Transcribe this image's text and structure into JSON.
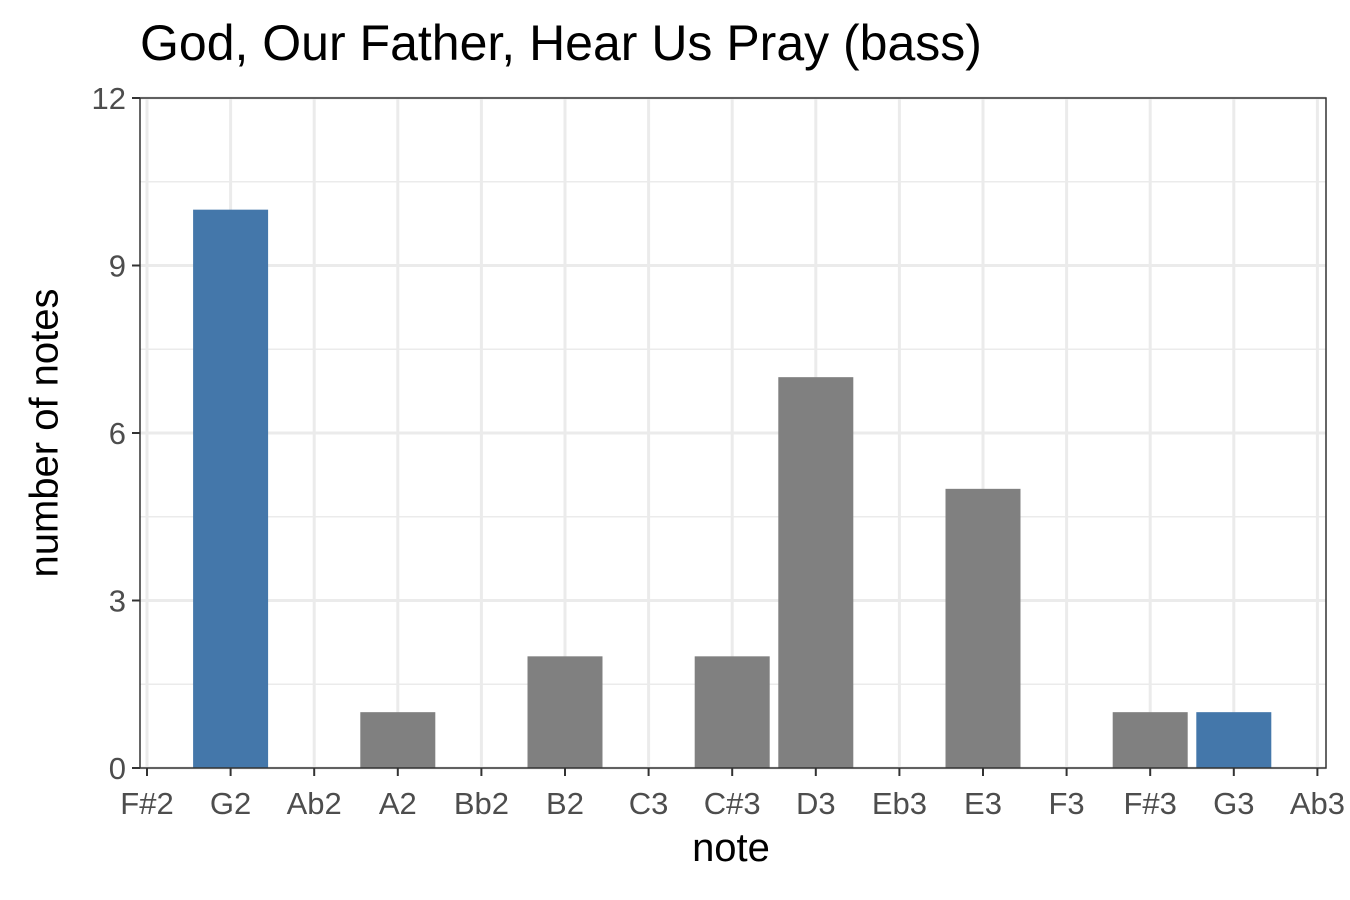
{
  "chart_data": {
    "type": "bar",
    "title": "God, Our Father, Hear Us Pray (bass)",
    "xlabel": "note",
    "ylabel": "number of notes",
    "ylim": [
      0,
      12
    ],
    "yticks": [
      0,
      3,
      6,
      9,
      12
    ],
    "categories": [
      "F#2",
      "G2",
      "Ab2",
      "A2",
      "Bb2",
      "B2",
      "C3",
      "C#3",
      "D3",
      "Eb3",
      "E3",
      "F3",
      "F#3",
      "G3",
      "Ab3"
    ],
    "values": [
      0,
      10,
      0,
      1,
      0,
      2,
      0,
      2,
      7,
      0,
      5,
      0,
      1,
      1,
      0
    ],
    "highlighted": [
      "G2",
      "G3"
    ],
    "colors": {
      "highlight": "#4477aa",
      "default": "#808080",
      "grid": "#ebebeb",
      "axis": "#333333",
      "tick_text": "#4d4d4d"
    },
    "grid": true,
    "legend": "none"
  }
}
